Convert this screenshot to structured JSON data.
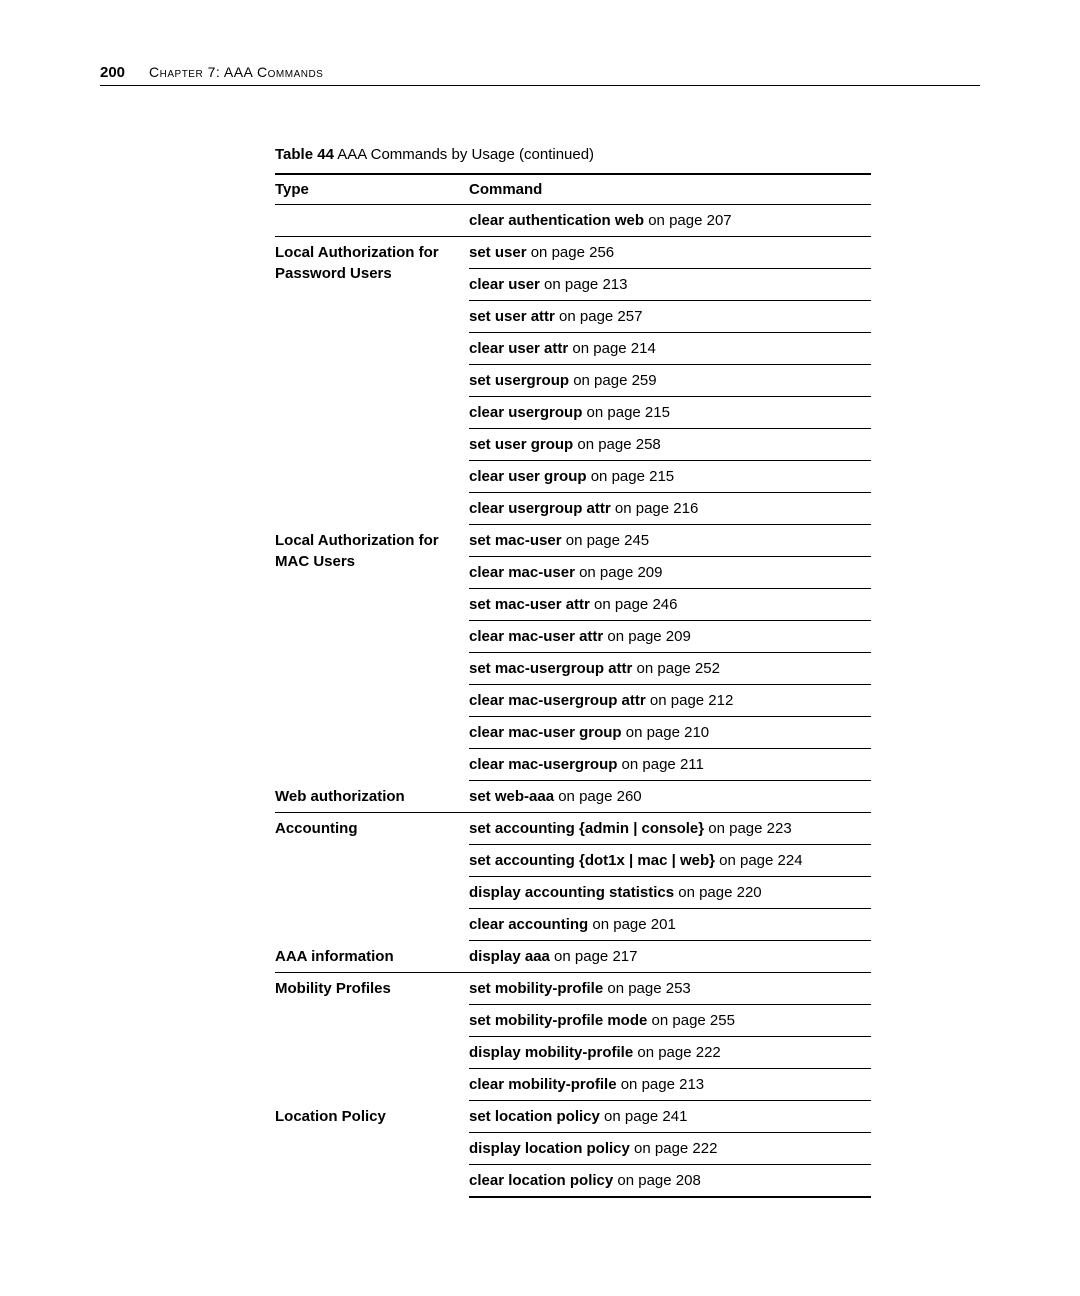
{
  "header": {
    "page_number": "200",
    "chapter": "Chapter 7: AAA Commands"
  },
  "table": {
    "caption_label": "Table 44",
    "caption_rest": "   AAA Commands by Usage (continued)",
    "columns": {
      "type": "Type",
      "command": "Command"
    },
    "rows": [
      {
        "type": "",
        "cmd_bold": "clear authentication web",
        "cmd_rest": " on page 207",
        "type_rowspan": 1,
        "type_border": true
      },
      {
        "type": "Local Authorization for Password Users",
        "cmd_bold": "set user",
        "cmd_rest": " on page 256",
        "type_rowspan": 9,
        "type_border": false
      },
      {
        "cmd_bold": "clear user",
        "cmd_rest": " on page 213"
      },
      {
        "cmd_bold": "set user attr",
        "cmd_rest": " on page 257"
      },
      {
        "cmd_bold": "clear user attr",
        "cmd_rest": " on page 214"
      },
      {
        "cmd_bold": "set usergroup",
        "cmd_rest": " on page 259"
      },
      {
        "cmd_bold": "clear usergroup",
        "cmd_rest": " on page 215"
      },
      {
        "cmd_bold": "set user group",
        "cmd_rest": " on page 258"
      },
      {
        "cmd_bold": "clear user group",
        "cmd_rest": " on page 215"
      },
      {
        "cmd_bold": "clear usergroup attr",
        "cmd_rest": " on page 216"
      },
      {
        "type": "Local Authorization for MAC Users",
        "cmd_bold": "set mac-user",
        "cmd_rest": " on page 245",
        "type_rowspan": 8,
        "type_border": false
      },
      {
        "cmd_bold": "clear mac-user",
        "cmd_rest": " on page 209"
      },
      {
        "cmd_bold": "set mac-user attr",
        "cmd_rest": " on page 246"
      },
      {
        "cmd_bold": "clear mac-user attr",
        "cmd_rest": " on page 209"
      },
      {
        "cmd_bold": "set mac-usergroup attr",
        "cmd_rest": " on page 252"
      },
      {
        "cmd_bold": "clear mac-usergroup attr",
        "cmd_rest": " on page 212"
      },
      {
        "cmd_bold": "clear mac-user group",
        "cmd_rest": " on page 210"
      },
      {
        "cmd_bold": "clear mac-usergroup",
        "cmd_rest": " on page 211"
      },
      {
        "type": "Web authorization",
        "cmd_bold": "set web-aaa",
        "cmd_rest": " on page 260",
        "type_rowspan": 1,
        "type_border": true
      },
      {
        "type": "Accounting",
        "cmd_bold": "set accounting {admin | console}",
        "cmd_rest": " on page 223",
        "type_rowspan": 4,
        "type_border": false
      },
      {
        "cmd_bold": "set accounting {dot1x | mac | web}",
        "cmd_rest": " on page 224"
      },
      {
        "cmd_bold": "display accounting statistics",
        "cmd_rest": " on page 220"
      },
      {
        "cmd_bold": "clear accounting",
        "cmd_rest": " on page 201"
      },
      {
        "type": "AAA information",
        "cmd_bold": "display aaa",
        "cmd_rest": " on page 217",
        "type_rowspan": 1,
        "type_border": true
      },
      {
        "type": "Mobility Profiles",
        "cmd_bold": "set mobility-profile",
        "cmd_rest": " on page 253",
        "type_rowspan": 4,
        "type_border": false
      },
      {
        "cmd_bold": "set mobility-profile mode",
        "cmd_rest": " on page 255"
      },
      {
        "cmd_bold": "display mobility-profile",
        "cmd_rest": " on page 222"
      },
      {
        "cmd_bold": "clear mobility-profile",
        "cmd_rest": " on page 213"
      },
      {
        "type": "Location Policy",
        "cmd_bold": "set location policy",
        "cmd_rest": " on page 241",
        "type_rowspan": 3,
        "type_border": false
      },
      {
        "cmd_bold": "display location policy",
        "cmd_rest": " on page 222"
      },
      {
        "cmd_bold": "clear location policy",
        "cmd_rest": " on page 208",
        "last": true
      }
    ]
  }
}
